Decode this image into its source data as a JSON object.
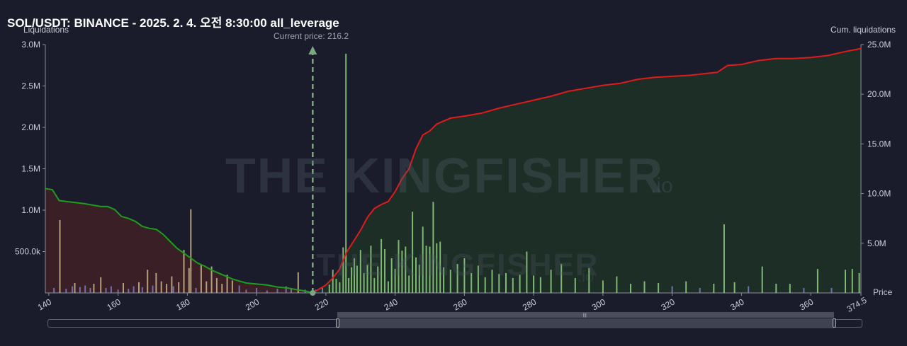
{
  "title": "SOL/USDT: BINANCE - 2025. 2. 4. 오전 8:30:00 all_leverage",
  "current_price_label": "Current price: 216.2",
  "watermark": {
    "main": "THE KINGFISHER",
    "suffix": ".io"
  },
  "chart_data": {
    "type": "bar",
    "title": "SOL/USDT: BINANCE - 2025. 2. 4. 오전 8:30:00 all_leverage",
    "xlabel": "Price",
    "ylabel": "Liquidations",
    "y2label": "Cum. liquidations",
    "xlim": [
      139,
      374.5
    ],
    "ylim": [
      0,
      3000000
    ],
    "y2lim": [
      0,
      25000000
    ],
    "x_ticks": [
      140,
      160,
      180,
      200,
      220,
      240,
      260,
      280,
      300,
      320,
      340,
      360,
      374.5
    ],
    "x_tick_labels": [
      "140",
      "160",
      "180",
      "200",
      "220",
      "240",
      "260",
      "280",
      "300",
      "320",
      "340",
      "360",
      "374.5"
    ],
    "y_ticks": [
      500000,
      1000000,
      1500000,
      2000000,
      2500000,
      3000000
    ],
    "y_tick_labels": [
      "500.0k",
      "1.0M",
      "1.5M",
      "2.0M",
      "2.5M",
      "3.0M"
    ],
    "y2_ticks": [
      5000000,
      10000000,
      15000000,
      20000000,
      25000000
    ],
    "y2_tick_labels": [
      "5.0M",
      "10.0M",
      "15.0M",
      "20.0M",
      "25.0M"
    ],
    "current_price": 216.2,
    "grid": false,
    "colors": {
      "long_bar": "#c9b78a",
      "short_bar": "#8fd07f",
      "small_bar": "#7d7fc4",
      "long_cum_line": "#1f9d1f",
      "short_cum_line": "#e01b1b",
      "long_cum_fill": "#3a1f26",
      "short_cum_fill": "#1d2e27",
      "current_price": "#7fa77f"
    },
    "series": [
      {
        "name": "long_liquidations",
        "side": "long",
        "x": [
          141.5,
          143.2,
          145,
          146.8,
          147.5,
          149,
          150.5,
          152,
          153,
          155,
          156.5,
          158,
          160,
          161.5,
          163,
          164.5,
          166,
          167,
          168.5,
          170,
          171,
          172.5,
          174,
          175.5,
          176,
          177.5,
          179,
          180.5,
          181,
          182.5,
          184,
          185.5,
          187,
          188.5,
          190,
          191.5,
          193,
          195,
          197,
          200,
          203,
          206,
          208.5,
          210,
          212,
          214
        ],
        "y": [
          60000,
          880000,
          50000,
          80000,
          120000,
          70000,
          90000,
          60000,
          110000,
          190000,
          60000,
          80000,
          40000,
          120000,
          50000,
          80000,
          130000,
          70000,
          280000,
          90000,
          240000,
          140000,
          110000,
          200000,
          80000,
          130000,
          520000,
          300000,
          1010000,
          60000,
          340000,
          140000,
          320000,
          180000,
          110000,
          220000,
          150000,
          90000,
          40000,
          60000,
          30000,
          50000,
          80000,
          60000,
          250000,
          40000
        ]
      },
      {
        "name": "short_liquidations",
        "side": "short",
        "x": [
          217,
          219,
          221,
          222,
          223,
          224,
          225,
          225.8,
          226.6,
          227.4,
          228.2,
          229,
          230,
          231,
          232,
          233,
          234,
          235,
          236,
          237,
          238,
          239,
          240,
          241,
          242,
          243,
          244,
          245,
          246,
          247,
          248,
          249,
          250,
          251,
          252,
          253,
          254,
          256,
          258,
          260,
          262,
          264,
          266,
          268,
          270,
          272,
          274,
          276,
          278,
          280,
          282,
          285,
          288,
          292,
          296,
          300,
          304,
          308,
          312,
          316,
          320,
          324,
          328,
          332,
          335,
          338,
          342,
          346,
          350,
          354,
          358,
          362,
          366,
          370,
          372,
          374
        ],
        "y": [
          40000,
          60000,
          100000,
          280000,
          170000,
          130000,
          550000,
          2890000,
          180000,
          310000,
          420000,
          330000,
          520000,
          240000,
          340000,
          570000,
          180000,
          320000,
          650000,
          530000,
          140000,
          420000,
          290000,
          640000,
          510000,
          560000,
          210000,
          980000,
          430000,
          340000,
          800000,
          570000,
          560000,
          1100000,
          600000,
          620000,
          310000,
          280000,
          350000,
          420000,
          240000,
          330000,
          190000,
          280000,
          230000,
          240000,
          180000,
          220000,
          500000,
          210000,
          190000,
          280000,
          350000,
          180000,
          300000,
          150000,
          200000,
          110000,
          140000,
          120000,
          80000,
          140000,
          60000,
          110000,
          830000,
          130000,
          80000,
          320000,
          110000,
          110000,
          60000,
          290000,
          60000,
          280000,
          290000,
          240000
        ]
      },
      {
        "name": "long_cumulative",
        "axis": "right",
        "side": "long",
        "x": [
          139,
          141,
          143,
          145,
          150,
          155,
          157,
          159,
          161,
          163,
          165,
          167,
          169,
          171,
          173,
          175,
          177,
          179,
          181,
          183,
          185,
          187,
          189,
          191,
          193,
          195,
          197,
          200,
          203,
          206,
          209,
          212,
          214,
          216.2
        ],
        "y": [
          10500000,
          10400000,
          9300000,
          9200000,
          9000000,
          8700000,
          8700000,
          8400000,
          7700000,
          7500000,
          7200000,
          6700000,
          6500000,
          6400000,
          5900000,
          5200000,
          4500000,
          4000000,
          3500000,
          3000000,
          2700000,
          2300000,
          2000000,
          1700000,
          1400000,
          1200000,
          1000000,
          900000,
          800000,
          600000,
          500000,
          300000,
          200000,
          0
        ]
      },
      {
        "name": "short_cumulative",
        "axis": "right",
        "side": "short",
        "x": [
          216.2,
          220,
          222,
          224,
          226,
          228,
          230,
          232,
          234,
          236,
          238,
          240,
          242,
          244,
          246,
          248,
          250,
          252,
          256,
          260,
          265,
          270,
          275,
          280,
          285,
          290,
          295,
          300,
          305,
          310,
          315,
          320,
          325,
          330,
          333,
          336,
          340,
          345,
          350,
          355,
          360,
          365,
          370,
          374.5
        ],
        "y": [
          0,
          800000,
          1500000,
          2400000,
          4100000,
          5200000,
          6300000,
          7600000,
          8500000,
          8900000,
          9200000,
          10200000,
          11500000,
          12500000,
          14500000,
          15900000,
          16300000,
          17000000,
          17600000,
          17800000,
          18100000,
          18600000,
          19000000,
          19400000,
          19800000,
          20300000,
          20600000,
          20900000,
          21100000,
          21500000,
          21700000,
          21800000,
          21900000,
          22100000,
          22200000,
          22900000,
          23000000,
          23400000,
          23600000,
          23600000,
          23700000,
          23900000,
          24300000,
          24600000
        ]
      }
    ]
  }
}
